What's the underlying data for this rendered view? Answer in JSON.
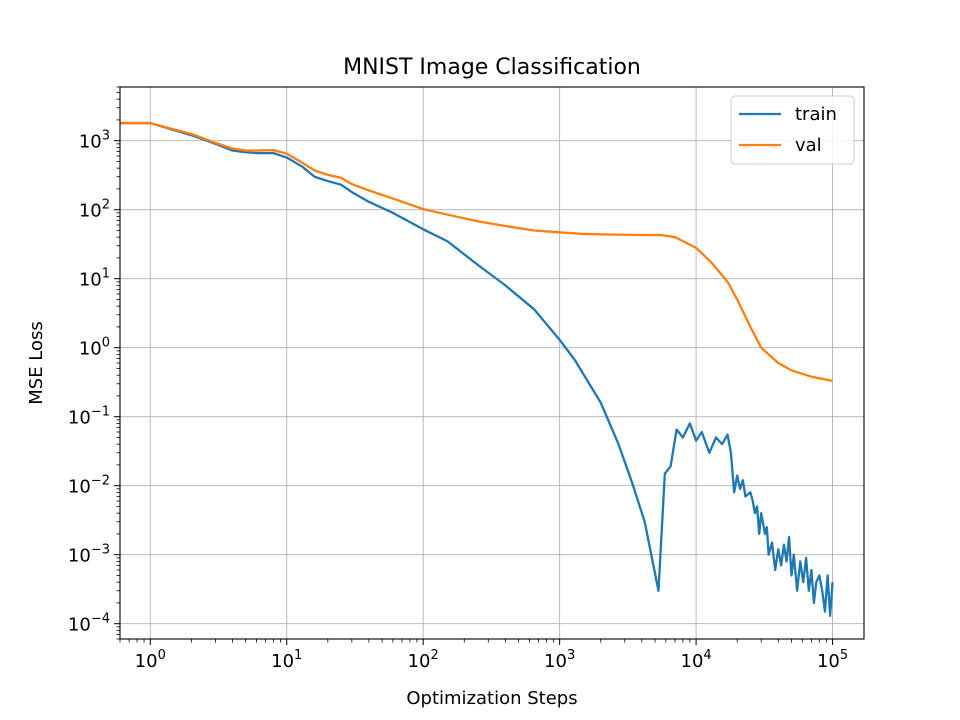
{
  "chart_data": {
    "type": "line",
    "title": "MNIST Image Classification",
    "xlabel": "Optimization Steps",
    "ylabel": "MSE Loss",
    "xscale": "log",
    "yscale": "log",
    "xlim": [
      0.6,
      170000
    ],
    "ylim": [
      6e-05,
      6000
    ],
    "x_ticks": [
      1,
      10,
      100,
      1000,
      10000,
      100000
    ],
    "x_tick_labels": [
      {
        "base": "10",
        "exp": "0"
      },
      {
        "base": "10",
        "exp": "1"
      },
      {
        "base": "10",
        "exp": "2"
      },
      {
        "base": "10",
        "exp": "3"
      },
      {
        "base": "10",
        "exp": "4"
      },
      {
        "base": "10",
        "exp": "5"
      }
    ],
    "y_ticks": [
      0.0001,
      0.001,
      0.01,
      0.1,
      1,
      10,
      100,
      1000
    ],
    "y_tick_labels": [
      {
        "base": "10",
        "exp": "−4"
      },
      {
        "base": "10",
        "exp": "−3"
      },
      {
        "base": "10",
        "exp": "−2"
      },
      {
        "base": "10",
        "exp": "−1"
      },
      {
        "base": "10",
        "exp": "0"
      },
      {
        "base": "10",
        "exp": "1"
      },
      {
        "base": "10",
        "exp": "2"
      },
      {
        "base": "10",
        "exp": "3"
      }
    ],
    "grid": true,
    "legend_position": "top-right",
    "series": [
      {
        "name": "train",
        "color": "#1f77b4",
        "points": [
          [
            0.6,
            1800
          ],
          [
            1,
            1800
          ],
          [
            2,
            1200
          ],
          [
            3,
            900
          ],
          [
            4,
            720
          ],
          [
            5,
            680
          ],
          [
            6,
            660
          ],
          [
            8,
            660
          ],
          [
            10,
            570
          ],
          [
            13,
            420
          ],
          [
            16,
            300
          ],
          [
            20,
            260
          ],
          [
            25,
            230
          ],
          [
            30,
            180
          ],
          [
            40,
            130
          ],
          [
            60,
            90
          ],
          [
            100,
            52
          ],
          [
            150,
            35
          ],
          [
            250,
            16
          ],
          [
            400,
            8
          ],
          [
            650,
            3.6
          ],
          [
            1000,
            1.3
          ],
          [
            1300,
            0.65
          ],
          [
            2000,
            0.16
          ],
          [
            2700,
            0.04
          ],
          [
            3400,
            0.011
          ],
          [
            4200,
            0.003
          ],
          [
            5300,
            0.0003
          ],
          [
            5900,
            0.015
          ],
          [
            6500,
            0.019
          ],
          [
            7200,
            0.065
          ],
          [
            8000,
            0.05
          ],
          [
            9000,
            0.08
          ],
          [
            10000,
            0.045
          ],
          [
            11000,
            0.06
          ],
          [
            12500,
            0.03
          ],
          [
            14000,
            0.05
          ],
          [
            15500,
            0.04
          ],
          [
            17000,
            0.055
          ],
          [
            18000,
            0.03
          ],
          [
            19000,
            0.008
          ],
          [
            20000,
            0.014
          ],
          [
            21000,
            0.009
          ],
          [
            22000,
            0.012
          ],
          [
            23000,
            0.007
          ],
          [
            25000,
            0.008
          ],
          [
            26000,
            0.006
          ],
          [
            27000,
            0.004
          ],
          [
            28000,
            0.005
          ],
          [
            29000,
            0.002
          ],
          [
            30000,
            0.004
          ],
          [
            32000,
            0.002
          ],
          [
            33000,
            0.0025
          ],
          [
            34000,
            0.001
          ],
          [
            36000,
            0.0015
          ],
          [
            38000,
            0.0006
          ],
          [
            40000,
            0.0012
          ],
          [
            42000,
            0.0007
          ],
          [
            44000,
            0.0014
          ],
          [
            46000,
            0.0008
          ],
          [
            48000,
            0.0018
          ],
          [
            50000,
            0.0005
          ],
          [
            52000,
            0.001
          ],
          [
            55000,
            0.0003
          ],
          [
            58000,
            0.0008
          ],
          [
            61000,
            0.0004
          ],
          [
            64000,
            0.0009
          ],
          [
            67000,
            0.0003
          ],
          [
            70000,
            0.0006
          ],
          [
            73000,
            0.0002
          ],
          [
            76000,
            0.0004
          ],
          [
            80000,
            0.0005
          ],
          [
            84000,
            0.0003
          ],
          [
            88000,
            0.00015
          ],
          [
            92000,
            0.0005
          ],
          [
            96000,
            0.00013
          ],
          [
            100000,
            0.0004
          ]
        ]
      },
      {
        "name": "val",
        "color": "#ff7f0e",
        "points": [
          [
            0.6,
            1800
          ],
          [
            1,
            1800
          ],
          [
            2,
            1250
          ],
          [
            3,
            930
          ],
          [
            4,
            770
          ],
          [
            5,
            720
          ],
          [
            6,
            720
          ],
          [
            8,
            730
          ],
          [
            10,
            650
          ],
          [
            13,
            480
          ],
          [
            16,
            370
          ],
          [
            20,
            320
          ],
          [
            25,
            290
          ],
          [
            30,
            235
          ],
          [
            40,
            190
          ],
          [
            60,
            145
          ],
          [
            100,
            102
          ],
          [
            150,
            85
          ],
          [
            250,
            68
          ],
          [
            400,
            58
          ],
          [
            650,
            50
          ],
          [
            1000,
            47
          ],
          [
            1500,
            44.5
          ],
          [
            2500,
            43.5
          ],
          [
            4000,
            43
          ],
          [
            5500,
            43
          ],
          [
            7000,
            40
          ],
          [
            10000,
            28
          ],
          [
            13000,
            17
          ],
          [
            17000,
            9
          ],
          [
            20000,
            5
          ],
          [
            25000,
            2
          ],
          [
            30000,
            1
          ],
          [
            40000,
            0.6
          ],
          [
            50000,
            0.47
          ],
          [
            70000,
            0.38
          ],
          [
            100000,
            0.33
          ]
        ]
      }
    ]
  }
}
